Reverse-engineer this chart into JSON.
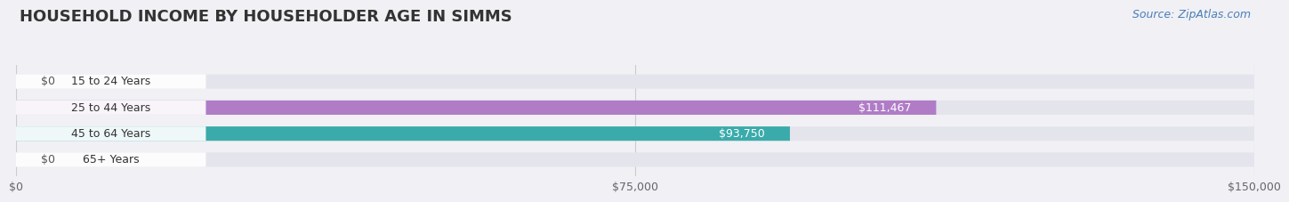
{
  "title": "HOUSEHOLD INCOME BY HOUSEHOLDER AGE IN SIMMS",
  "source": "Source: ZipAtlas.com",
  "categories": [
    "15 to 24 Years",
    "25 to 44 Years",
    "45 to 64 Years",
    "65+ Years"
  ],
  "values": [
    0,
    111467,
    93750,
    0
  ],
  "bar_colors": [
    "#a8b8d8",
    "#b07cc6",
    "#3aabaa",
    "#a8b8d8"
  ],
  "bar_labels": [
    "$0",
    "$111,467",
    "$93,750",
    "$0"
  ],
  "label_colors": [
    "#555555",
    "#ffffff",
    "#ffffff",
    "#555555"
  ],
  "xlim": [
    0,
    150000
  ],
  "xtick_values": [
    0,
    75000,
    150000
  ],
  "xtick_labels": [
    "$0",
    "$75,000",
    "$150,000"
  ],
  "background_color": "#f0f0f5",
  "bar_bg_color": "#e4e4ec",
  "title_fontsize": 13,
  "source_fontsize": 9,
  "label_fontsize": 9,
  "tick_fontsize": 9,
  "bar_height": 0.55
}
